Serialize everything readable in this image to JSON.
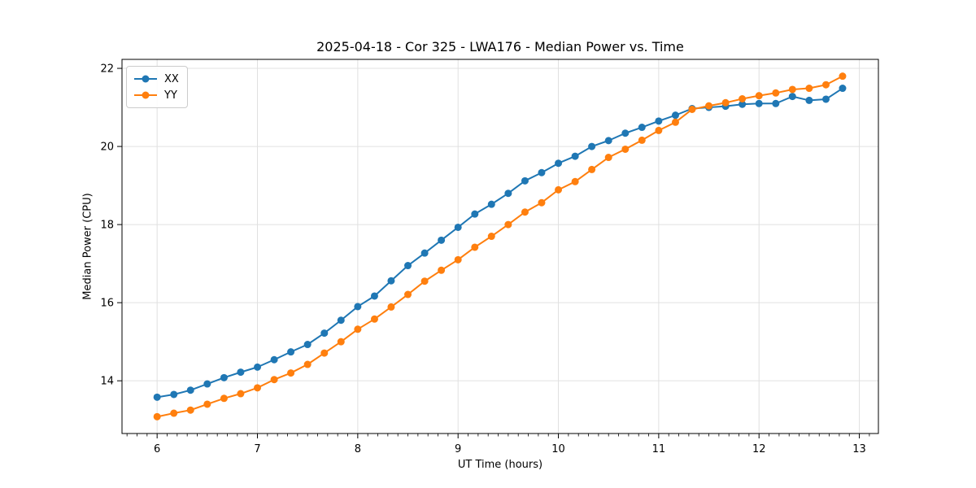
{
  "chart_data": {
    "type": "line",
    "title": "2025-04-18 - Cor 325 - LWA176 - Median Power vs. Time",
    "xlabel": "UT Time (hours)",
    "ylabel": "Median Power (CPU)",
    "x": [
      6.0,
      6.167,
      6.333,
      6.5,
      6.667,
      6.833,
      7.0,
      7.167,
      7.333,
      7.5,
      7.667,
      7.833,
      8.0,
      8.167,
      8.333,
      8.5,
      8.667,
      8.833,
      9.0,
      9.167,
      9.333,
      9.5,
      9.667,
      9.833,
      10.0,
      10.167,
      10.333,
      10.5,
      10.667,
      10.833,
      11.0,
      11.167,
      11.333,
      11.5,
      11.667,
      11.833,
      12.0,
      12.167,
      12.333,
      12.5,
      12.667,
      12.833
    ],
    "series": [
      {
        "name": "XX",
        "color": "#1f77b4",
        "values": [
          13.58,
          13.65,
          13.76,
          13.92,
          14.08,
          14.22,
          14.35,
          14.54,
          14.74,
          14.93,
          15.22,
          15.55,
          15.9,
          16.17,
          16.56,
          16.95,
          17.27,
          17.6,
          17.93,
          18.27,
          18.52,
          18.8,
          19.12,
          19.33,
          19.57,
          19.75,
          20.0,
          20.15,
          20.34,
          20.49,
          20.65,
          20.8,
          20.97,
          21.0,
          21.03,
          21.08,
          21.1,
          21.1,
          21.28,
          21.18,
          21.21,
          21.49
        ]
      },
      {
        "name": "YY",
        "color": "#ff7f0e",
        "values": [
          13.08,
          13.17,
          13.25,
          13.4,
          13.55,
          13.67,
          13.82,
          14.03,
          14.2,
          14.42,
          14.71,
          15.0,
          15.32,
          15.58,
          15.89,
          16.21,
          16.55,
          16.83,
          17.1,
          17.42,
          17.7,
          18.0,
          18.32,
          18.56,
          18.89,
          19.1,
          19.41,
          19.72,
          19.93,
          20.16,
          20.41,
          20.62,
          20.95,
          21.04,
          21.12,
          21.22,
          21.3,
          21.37,
          21.46,
          21.49,
          21.58,
          21.8
        ]
      }
    ],
    "x_ticks": [
      6,
      7,
      8,
      9,
      10,
      11,
      12,
      13
    ],
    "y_ticks": [
      14,
      16,
      18,
      20,
      22
    ],
    "x_minor_step": 0.1,
    "xlim": [
      5.65,
      13.19
    ],
    "ylim": [
      12.65,
      22.23
    ],
    "grid": true,
    "grid_color": "#e0e0e0",
    "spine_color": "#000000",
    "background": "#ffffff",
    "legend_position": "upper-left",
    "marker": "circle"
  }
}
